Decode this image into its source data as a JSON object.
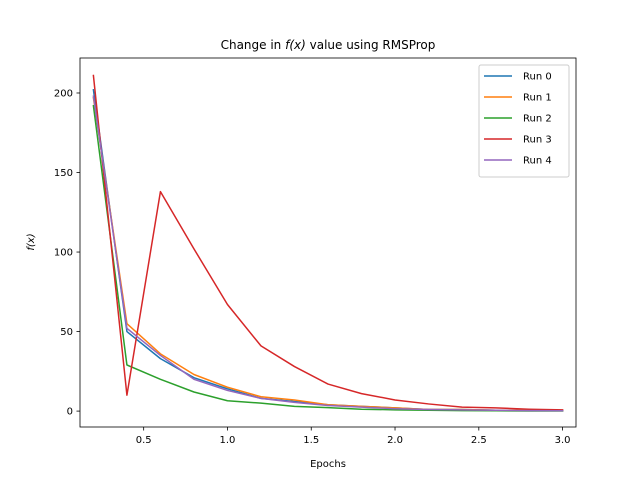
{
  "chart_data": {
    "type": "line",
    "title_prefix": "Change in ",
    "title_fx": "f(x)",
    "title_suffix": " value using RMSProp",
    "xlabel": "Epochs",
    "ylabel": "f(x)",
    "xlim": [
      0.12,
      3.08
    ],
    "ylim": [
      -10,
      222
    ],
    "xticks": [
      0.5,
      1.0,
      1.5,
      2.0,
      2.5,
      3.0
    ],
    "xtick_labels": [
      "0.5",
      "1.0",
      "1.5",
      "2.0",
      "2.5",
      "3.0"
    ],
    "yticks": [
      0,
      50,
      100,
      150,
      200
    ],
    "ytick_labels": [
      "0",
      "50",
      "100",
      "150",
      "200"
    ],
    "legend_position": "top-right",
    "grid": false,
    "x": [
      0.2,
      0.4,
      0.6,
      0.8,
      1.0,
      1.2,
      1.4,
      1.6,
      1.8,
      2.0,
      2.2,
      2.4,
      2.6,
      2.8,
      3.0
    ],
    "series": [
      {
        "name": "Run 0",
        "color": "#1f77b4",
        "values": [
          202,
          50,
          33,
          21,
          14,
          8,
          6,
          4,
          3,
          2,
          1,
          1,
          0.5,
          0.5,
          0.3
        ]
      },
      {
        "name": "Run 1",
        "color": "#ff7f0e",
        "values": [
          197,
          55,
          36,
          23,
          15,
          9,
          7,
          4,
          3,
          2,
          1,
          1,
          0.5,
          0.5,
          0.3
        ]
      },
      {
        "name": "Run 2",
        "color": "#2ca02c",
        "values": [
          192,
          29,
          20,
          12,
          6.5,
          5,
          3,
          2.2,
          1.2,
          0.8,
          0.5,
          0.3,
          0.2,
          0.1,
          0.1
        ]
      },
      {
        "name": "Run 3",
        "color": "#d62728",
        "values": [
          211,
          10,
          138,
          102,
          67,
          41,
          28,
          17,
          11,
          7,
          4.5,
          2.5,
          2,
          1.2,
          0.8
        ]
      },
      {
        "name": "Run 4",
        "color": "#9467bd",
        "values": [
          198,
          52,
          35,
          20,
          13,
          8,
          5.5,
          3.5,
          2.5,
          1.5,
          1,
          0.8,
          0.5,
          0.3,
          0.2
        ]
      }
    ]
  }
}
